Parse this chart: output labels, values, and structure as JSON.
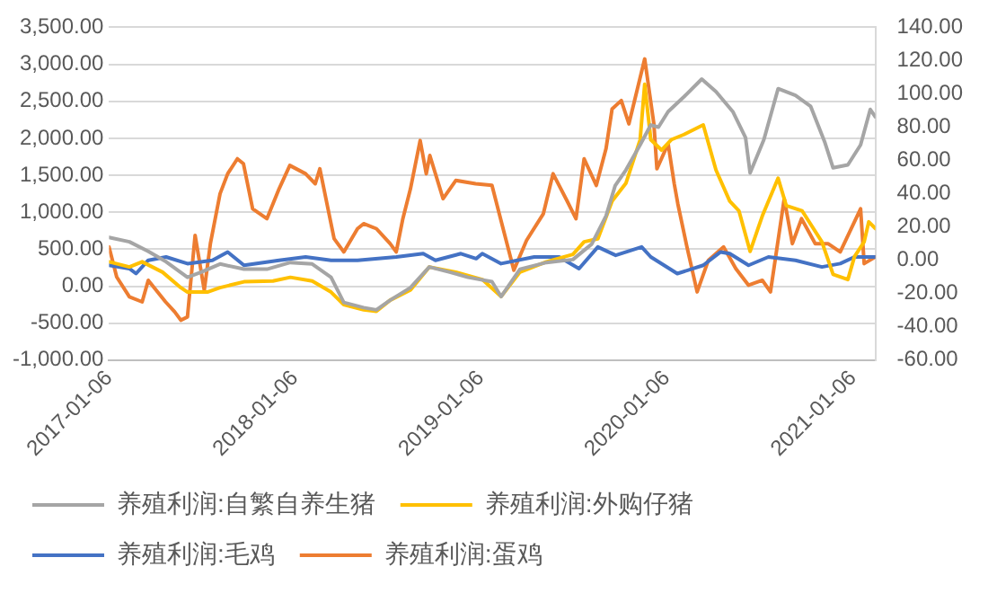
{
  "chart_data": {
    "type": "line",
    "legend": "bottom",
    "grid": "y",
    "marker": "none",
    "line_style": "solid",
    "xlim": [
      "2017-01-06",
      "2021-02-19"
    ],
    "xticks": [
      "2017-01-06",
      "2018-01-06",
      "2019-01-06",
      "2020-01-06",
      "2021-01-06"
    ],
    "ylim": [
      -1000,
      3500
    ],
    "yticks": [
      {
        "value": -1000,
        "label": "-1,000.00"
      },
      {
        "value": -500,
        "label": "-500.00"
      },
      {
        "value": 0,
        "label": "0.00"
      },
      {
        "value": 500,
        "label": "500.00"
      },
      {
        "value": 1000,
        "label": "1,000.00"
      },
      {
        "value": 1500,
        "label": "1,500.00"
      },
      {
        "value": 2000,
        "label": "2,000.00"
      },
      {
        "value": 2500,
        "label": "2,500.00"
      },
      {
        "value": 3000,
        "label": "3,000.00"
      },
      {
        "value": 3500,
        "label": "3,500.00"
      }
    ],
    "y2lim": [
      -60,
      140
    ],
    "y2ticks": [
      {
        "value": -60,
        "label": "-60.00"
      },
      {
        "value": -40,
        "label": "-40.00"
      },
      {
        "value": -20,
        "label": "-20.00"
      },
      {
        "value": 0,
        "label": "0.00"
      },
      {
        "value": 20,
        "label": "20.00"
      },
      {
        "value": 40,
        "label": "40.00"
      },
      {
        "value": 60,
        "label": "60.00"
      },
      {
        "value": 80,
        "label": "80.00"
      },
      {
        "value": 100,
        "label": "100.00"
      },
      {
        "value": 120,
        "label": "120.00"
      },
      {
        "value": 140,
        "label": "140.00"
      }
    ],
    "series": [
      {
        "name": "养殖利润:自繁自养生猪",
        "color": "#a5a5a5",
        "x": [
          "2017-01-06",
          "2017-02-15",
          "2017-03-24",
          "2017-04-28",
          "2017-06-09",
          "2017-07-06",
          "2017-08-12",
          "2017-09-28",
          "2017-11-12",
          "2017-12-28",
          "2018-02-09",
          "2018-03-18",
          "2018-04-12",
          "2018-05-21",
          "2018-06-15",
          "2018-07-12",
          "2018-08-21",
          "2018-09-27",
          "2018-11-06",
          "2018-12-12",
          "2019-01-28",
          "2019-02-15",
          "2019-03-24",
          "2019-05-15",
          "2019-07-06",
          "2019-08-12",
          "2019-09-09",
          "2019-09-27",
          "2019-10-18",
          "2019-11-15",
          "2019-12-06",
          "2019-12-21",
          "2020-01-09",
          "2020-02-09",
          "2020-03-15",
          "2020-04-12",
          "2020-05-15",
          "2020-06-09",
          "2020-06-18",
          "2020-07-15",
          "2020-08-12",
          "2020-09-15",
          "2020-10-15",
          "2020-11-12",
          "2020-11-28",
          "2020-12-27",
          "2021-01-21",
          "2021-02-09",
          "2021-02-19"
        ],
        "values": [
          660,
          600,
          470,
          330,
          120,
          190,
          300,
          230,
          230,
          320,
          300,
          120,
          -220,
          -290,
          -320,
          -190,
          -20,
          260,
          190,
          120,
          60,
          -140,
          230,
          320,
          360,
          570,
          950,
          1360,
          1570,
          1910,
          2180,
          2150,
          2360,
          2560,
          2800,
          2630,
          2360,
          2010,
          1530,
          1980,
          2670,
          2580,
          2430,
          1940,
          1600,
          1640,
          1910,
          2390,
          2290
        ]
      },
      {
        "name": "养殖利润:外购仔猪",
        "color": "#ffc000",
        "x": [
          "2017-01-06",
          "2017-02-15",
          "2017-03-12",
          "2017-04-21",
          "2017-05-27",
          "2017-06-09",
          "2017-07-18",
          "2017-08-12",
          "2017-09-28",
          "2017-11-24",
          "2017-12-28",
          "2018-02-09",
          "2018-03-18",
          "2018-04-12",
          "2018-05-21",
          "2018-06-15",
          "2018-07-12",
          "2018-08-21",
          "2018-09-27",
          "2018-11-18",
          "2019-01-09",
          "2019-02-15",
          "2019-03-24",
          "2019-05-15",
          "2019-07-06",
          "2019-07-28",
          "2019-08-24",
          "2019-09-21",
          "2019-10-18",
          "2019-11-15",
          "2019-11-24",
          "2019-12-06",
          "2019-12-27",
          "2020-01-15",
          "2020-02-09",
          "2020-03-18",
          "2020-04-12",
          "2020-05-09",
          "2020-05-27",
          "2020-06-18",
          "2020-07-12",
          "2020-08-12",
          "2020-08-28",
          "2020-09-28",
          "2020-11-06",
          "2020-11-28",
          "2020-12-27",
          "2021-01-09",
          "2021-01-28",
          "2021-02-06",
          "2021-02-19"
        ],
        "values": [
          330,
          260,
          330,
          190,
          -20,
          -80,
          -80,
          -20,
          60,
          70,
          120,
          70,
          -80,
          -250,
          -320,
          -340,
          -190,
          -50,
          260,
          190,
          90,
          -140,
          190,
          330,
          430,
          600,
          640,
          1150,
          1390,
          1980,
          2730,
          1980,
          1840,
          1980,
          2050,
          2180,
          1570,
          1150,
          1020,
          470,
          950,
          1460,
          1090,
          1020,
          600,
          160,
          90,
          400,
          600,
          870,
          780
        ]
      },
      {
        "name": "养殖利润:毛鸡",
        "color": "#4472c4",
        "axis": "y2",
        "x": [
          "2017-01-06",
          "2017-02-15",
          "2017-02-28",
          "2017-03-24",
          "2017-04-28",
          "2017-06-09",
          "2017-07-28",
          "2017-08-27",
          "2017-09-28",
          "2017-12-06",
          "2018-01-27",
          "2018-03-18",
          "2018-05-09",
          "2018-07-24",
          "2018-09-15",
          "2018-10-09",
          "2018-11-28",
          "2018-12-28",
          "2019-01-09",
          "2019-02-15",
          "2019-04-21",
          "2019-06-09",
          "2019-07-18",
          "2019-08-24",
          "2019-09-28",
          "2019-11-18",
          "2019-12-06",
          "2020-01-27",
          "2020-03-18",
          "2020-04-21",
          "2020-05-09",
          "2020-06-15",
          "2020-07-24",
          "2020-09-15",
          "2020-11-06",
          "2020-12-12",
          "2021-01-09",
          "2021-02-19"
        ],
        "values": [
          -3,
          -5,
          -8,
          0,
          2,
          -2,
          0,
          5,
          -3,
          0,
          2,
          0,
          0,
          2,
          4,
          0,
          4,
          1,
          4,
          -2,
          2,
          2,
          -5,
          8,
          3,
          8,
          2,
          -8,
          -3,
          5,
          4,
          -3,
          2,
          0,
          -4,
          -2,
          2,
          2
        ]
      },
      {
        "name": "养殖利润:蛋鸡",
        "color": "#ed7d31",
        "axis": "y2",
        "x": [
          "2017-01-06",
          "2017-01-21",
          "2017-02-15",
          "2017-03-12",
          "2017-03-24",
          "2017-04-27",
          "2017-05-15",
          "2017-05-27",
          "2017-06-09",
          "2017-06-24",
          "2017-07-12",
          "2017-07-24",
          "2017-08-12",
          "2017-08-27",
          "2017-09-15",
          "2017-09-27",
          "2017-10-15",
          "2017-11-12",
          "2017-12-06",
          "2017-12-27",
          "2018-01-27",
          "2018-02-15",
          "2018-02-24",
          "2018-03-12",
          "2018-03-24",
          "2018-04-12",
          "2018-05-09",
          "2018-05-21",
          "2018-06-15",
          "2018-07-12",
          "2018-07-24",
          "2018-08-06",
          "2018-08-21",
          "2018-09-09",
          "2018-09-21",
          "2018-09-28",
          "2018-10-24",
          "2018-11-18",
          "2018-12-27",
          "2019-01-28",
          "2019-03-12",
          "2019-04-06",
          "2019-05-09",
          "2019-05-28",
          "2019-06-24",
          "2019-07-12",
          "2019-07-28",
          "2019-08-21",
          "2019-09-09",
          "2019-09-21",
          "2019-10-09",
          "2019-10-24",
          "2019-11-24",
          "2019-12-12",
          "2019-12-18",
          "2020-01-09",
          "2020-01-21",
          "2020-01-28",
          "2020-02-15",
          "2020-03-06",
          "2020-03-28",
          "2020-04-27",
          "2020-05-21",
          "2020-06-15",
          "2020-07-12",
          "2020-07-28",
          "2020-08-24",
          "2020-09-09",
          "2020-09-27",
          "2020-10-24",
          "2020-11-18",
          "2020-12-12",
          "2021-01-21",
          "2021-01-28",
          "2021-02-19"
        ],
        "values": [
          8,
          -10,
          -22,
          -25,
          -12,
          -25,
          -31,
          -36,
          -34,
          15,
          -18,
          10,
          40,
          52,
          61,
          58,
          31,
          25,
          43,
          57,
          52,
          46,
          55,
          31,
          13,
          5,
          19,
          22,
          19,
          10,
          5,
          25,
          43,
          72,
          52,
          63,
          37,
          48,
          46,
          45,
          -6,
          12,
          28,
          52,
          36,
          25,
          61,
          45,
          67,
          91,
          96,
          82,
          121,
          82,
          55,
          70,
          46,
          34,
          8,
          -19,
          0,
          8,
          -5,
          -15,
          -12,
          -19,
          37,
          10,
          25,
          10,
          10,
          5,
          31,
          -2,
          2
        ]
      }
    ]
  }
}
